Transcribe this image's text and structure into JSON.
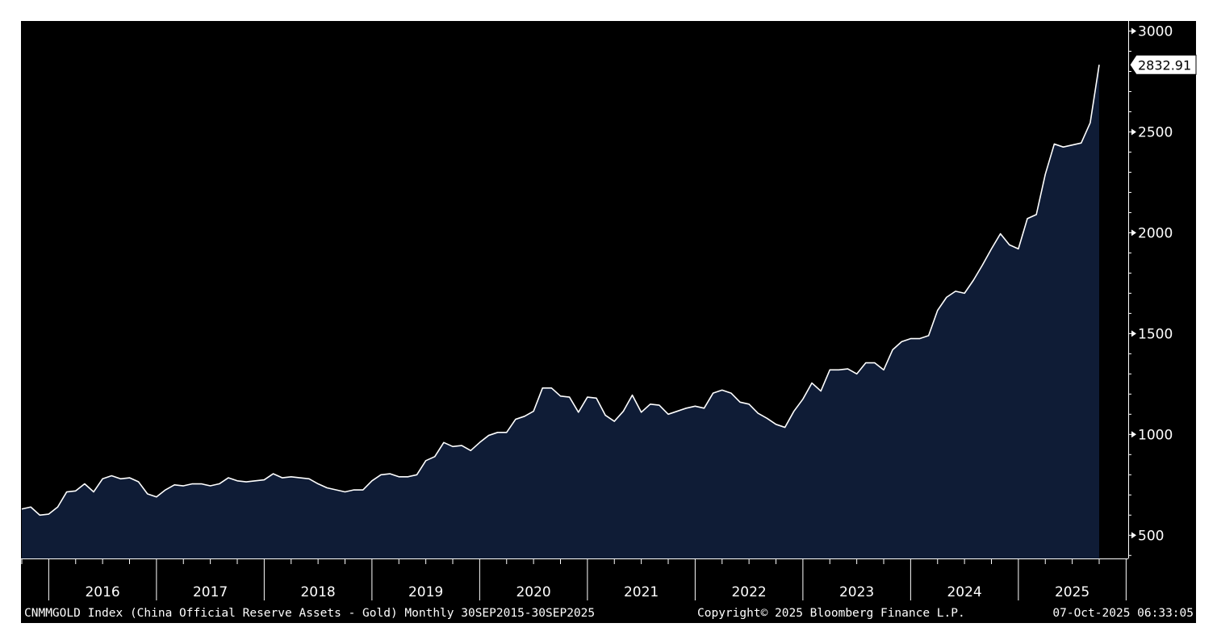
{
  "chart_data": {
    "type": "area",
    "series": [
      {
        "x_start": "2015-10",
        "x_end": "2025-09",
        "frequency": "Monthly",
        "values": [
          630,
          640,
          600,
          605,
          640,
          715,
          720,
          755,
          715,
          780,
          795,
          780,
          785,
          765,
          705,
          690,
          725,
          750,
          745,
          755,
          755,
          745,
          755,
          785,
          770,
          765,
          770,
          775,
          805,
          785,
          790,
          785,
          780,
          755,
          735,
          725,
          715,
          725,
          725,
          770,
          800,
          805,
          790,
          790,
          800,
          870,
          890,
          960,
          940,
          945,
          920,
          960,
          995,
          1010,
          1010,
          1075,
          1090,
          1115,
          1230,
          1230,
          1190,
          1185,
          1110,
          1185,
          1180,
          1095,
          1065,
          1115,
          1195,
          1110,
          1150,
          1145,
          1100,
          1115,
          1130,
          1140,
          1130,
          1205,
          1220,
          1205,
          1160,
          1150,
          1105,
          1080,
          1050,
          1035,
          1115,
          1175,
          1255,
          1215,
          1320,
          1320,
          1325,
          1300,
          1355,
          1355,
          1320,
          1420,
          1460,
          1475,
          1475,
          1490,
          1615,
          1680,
          1710,
          1700,
          1765,
          1840,
          1920,
          1995,
          1940,
          1920,
          2070,
          2090,
          2290,
          2440,
          2425,
          2435,
          2445,
          2545,
          2832.91
        ]
      }
    ],
    "last_value_label": "2832.91",
    "x_tick_labels": [
      "2016",
      "2017",
      "2018",
      "2019",
      "2020",
      "2021",
      "2022",
      "2023",
      "2024",
      "2025"
    ],
    "y_tick_labels": [
      "500",
      "1000",
      "1500",
      "2000",
      "2500",
      "3000"
    ],
    "y_ticks": [
      500,
      1000,
      1500,
      2000,
      2500,
      3000
    ],
    "ylim": [
      385,
      3050
    ],
    "grid": false,
    "colors": {
      "background": "#000000",
      "area_fill": "#0f1c36",
      "line": "#ffffff",
      "axis": "#ffffff"
    }
  },
  "footer": {
    "description": "CNMMGOLD Index (China Official Reserve Assets - Gold) Monthly 30SEP2015-30SEP2025",
    "copyright": "Copyright© 2025 Bloomberg Finance L.P.",
    "timestamp": "07-Oct-2025 06:33:05"
  }
}
